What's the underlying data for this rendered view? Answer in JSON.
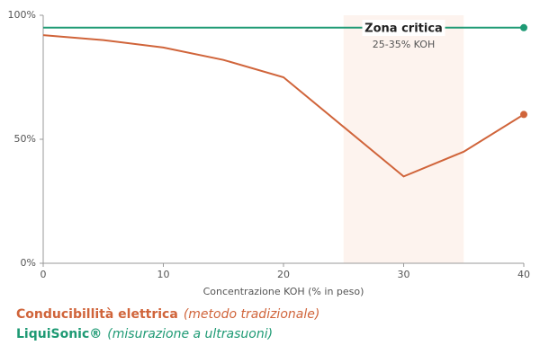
{
  "chart_data": {
    "type": "line",
    "x_label": "Concentrazione KOH (% in peso)",
    "xlim": [
      0,
      40
    ],
    "xticks": [
      0,
      10,
      20,
      30,
      40
    ],
    "ylim": [
      0,
      100
    ],
    "yticks": [
      {
        "value": 0,
        "label": "0%"
      },
      {
        "value": 50,
        "label": "50%"
      },
      {
        "value": 100,
        "label": "100%"
      }
    ],
    "grid": false,
    "highlight": {
      "xrange": [
        25,
        35
      ],
      "color": "#fdf3ee",
      "label": "Zona critica",
      "sublabel": "25-35% KOH"
    },
    "series": [
      {
        "name": "Conducibillità elettrica",
        "description": "(metodo tradizionale)",
        "color": "#d0643a",
        "x": [
          0,
          5,
          10,
          15,
          20,
          30,
          35,
          40
        ],
        "values": [
          92,
          90,
          87,
          82,
          75,
          35,
          45,
          60
        ]
      },
      {
        "name": "LiquiSonic®",
        "description": "(misurazione a ultrasuoni)",
        "color": "#1e9a74",
        "x": [
          0,
          40
        ],
        "values": [
          95,
          95
        ]
      }
    ]
  }
}
